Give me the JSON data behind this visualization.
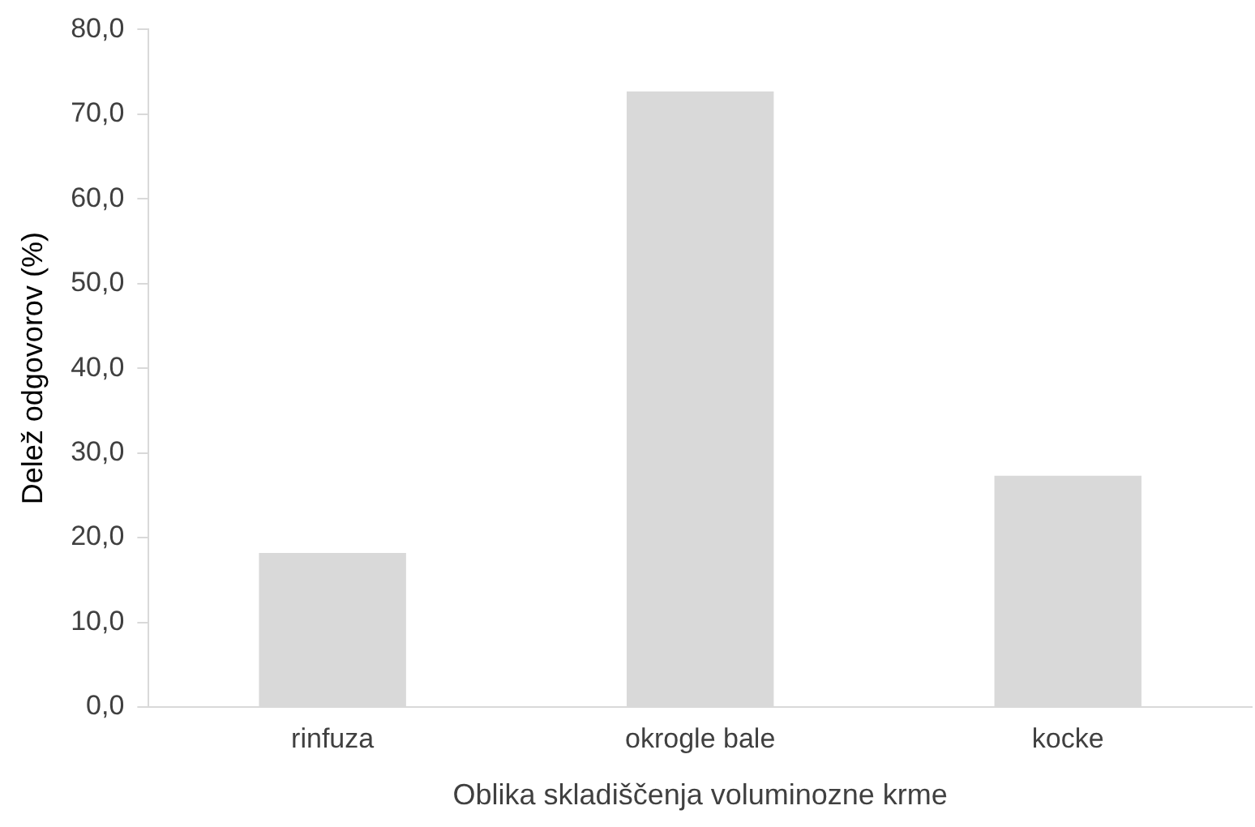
{
  "chart_data": {
    "type": "bar",
    "xlabel": "Oblika skladiščenja voluminozne krme",
    "ylabel": "Delež odgovorov (%)",
    "categories": [
      "rinfuza",
      "okrogle bale",
      "kocke"
    ],
    "values": [
      18.2,
      72.7,
      27.3
    ],
    "color": "#d9d9d9",
    "ylim": [
      0,
      80
    ],
    "yticks": [
      {
        "value": 0,
        "label": "0,0"
      },
      {
        "value": 10,
        "label": "10,0"
      },
      {
        "value": 20,
        "label": "20,0"
      },
      {
        "value": 30,
        "label": "30,0"
      },
      {
        "value": 40,
        "label": "40,0"
      },
      {
        "value": 50,
        "label": "50,0"
      },
      {
        "value": 60,
        "label": "60,0"
      },
      {
        "value": 70,
        "label": "70,0"
      },
      {
        "value": 80,
        "label": "80,0"
      }
    ],
    "grid": false,
    "legend": false
  }
}
